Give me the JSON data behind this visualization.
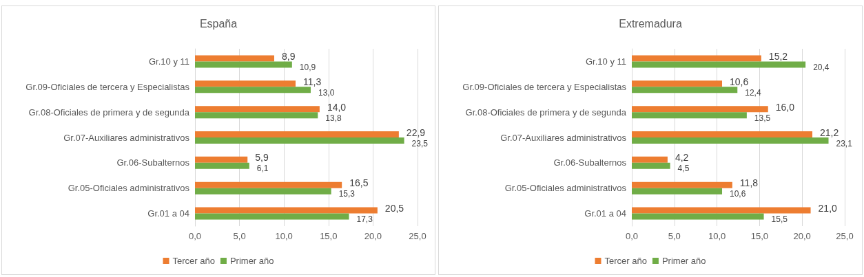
{
  "chart_data": [
    {
      "type": "bar",
      "orientation": "horizontal",
      "title": "España",
      "categories": [
        "Gr.10 y 11",
        "Gr.09-Oficiales de tercera y Especialistas",
        "Gr.08-Oficiales de primera y de segunda",
        "Gr.07-Auxiliares administrativos",
        "Gr.06-Subalternos",
        "Gr.05-Oficiales administrativos",
        "Gr.01 a 04"
      ],
      "series": [
        {
          "name": "Tercer año",
          "color": "#ed7d31",
          "values": [
            8.9,
            11.3,
            14.0,
            22.9,
            5.9,
            16.5,
            20.5
          ],
          "value_labels": [
            "8,9",
            "11,3",
            "14,0",
            "22,9",
            "5,9",
            "16,5",
            "20,5"
          ]
        },
        {
          "name": "Primer año",
          "color": "#70ad47",
          "values": [
            10.9,
            13.0,
            13.8,
            23.5,
            6.1,
            15.3,
            17.3
          ],
          "value_labels": [
            "10,9",
            "13,0",
            "13,8",
            "23,5",
            "6,1",
            "15,3",
            "17,3"
          ]
        }
      ],
      "xlim": [
        0,
        25
      ],
      "xticks": [
        {
          "value": 0,
          "label": "0,0"
        },
        {
          "value": 5,
          "label": "5,0"
        },
        {
          "value": 10,
          "label": "10,0"
        },
        {
          "value": 15,
          "label": "15,0"
        },
        {
          "value": 20,
          "label": "20,0"
        },
        {
          "value": 25,
          "label": "25,0"
        }
      ],
      "grid": "x",
      "legend": "bottom"
    },
    {
      "type": "bar",
      "orientation": "horizontal",
      "title": "Extremadura",
      "categories": [
        "Gr.10 y 11",
        "Gr.09-Oficiales de tercera y Especialistas",
        "Gr.08-Oficiales de primera y de segunda",
        "Gr.07-Auxiliares administrativos",
        "Gr.06-Subalternos",
        "Gr.05-Oficiales administrativos",
        "Gr.01 a 04"
      ],
      "series": [
        {
          "name": "Tercer año",
          "color": "#ed7d31",
          "values": [
            15.2,
            10.6,
            16.0,
            21.2,
            4.2,
            11.8,
            21.0
          ],
          "value_labels": [
            "15,2",
            "10,6",
            "16,0",
            "21,2",
            "4,2",
            "11,8",
            "21,0"
          ]
        },
        {
          "name": "Primer año",
          "color": "#70ad47",
          "values": [
            20.4,
            12.4,
            13.5,
            23.1,
            4.5,
            10.6,
            15.5
          ],
          "value_labels": [
            "20,4",
            "12,4",
            "13,5",
            "23,1",
            "4,5",
            "10,6",
            "15,5"
          ]
        }
      ],
      "xlim": [
        0,
        25
      ],
      "xticks": [
        {
          "value": 0,
          "label": "0,0"
        },
        {
          "value": 5,
          "label": "5,0"
        },
        {
          "value": 10,
          "label": "10,0"
        },
        {
          "value": 15,
          "label": "15,0"
        },
        {
          "value": 20,
          "label": "20,0"
        },
        {
          "value": 25,
          "label": "25,0"
        }
      ],
      "grid": "x",
      "legend": "bottom"
    }
  ]
}
